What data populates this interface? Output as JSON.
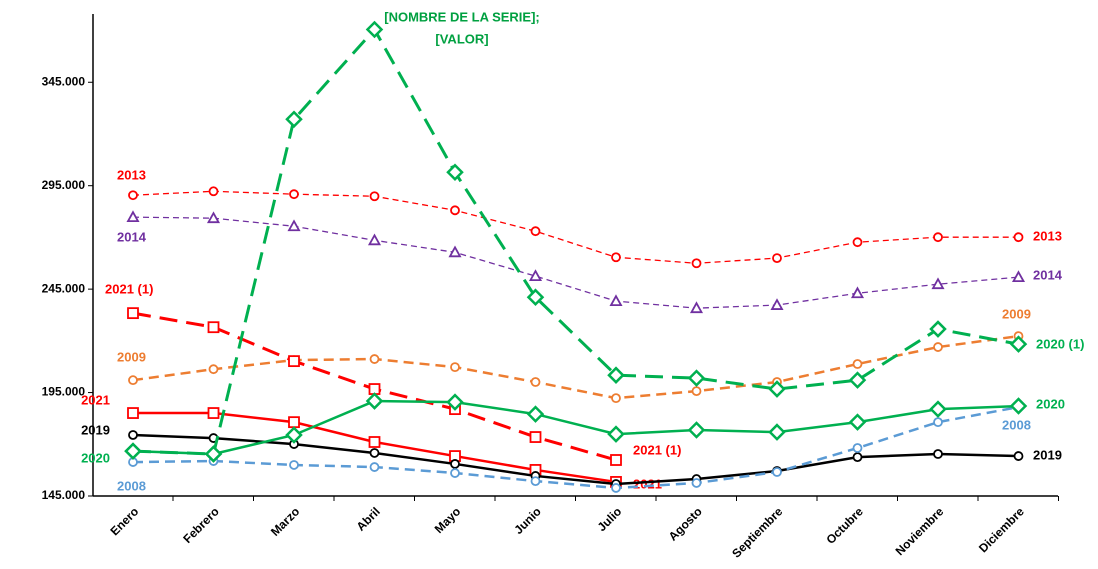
{
  "chart_data": {
    "type": "line",
    "annotation": [
      "[NOMBRE DE LA SERIE];",
      "[VALOR]"
    ],
    "annotation_color": "#00a040",
    "categories": [
      "Enero",
      "Febrero",
      "Marzo",
      "Abril",
      "Mayo",
      "Junio",
      "Julio",
      "Agosto",
      "Septiembre",
      "Octubre",
      "Noviembre",
      "Diciembre"
    ],
    "ylim": [
      145000,
      378000
    ],
    "yticks": [
      {
        "value": 145000,
        "label": "145.000"
      },
      {
        "value": 195000,
        "label": "195.000"
      },
      {
        "value": 245000,
        "label": "245.000"
      },
      {
        "value": 295000,
        "label": "295.000"
      },
      {
        "value": 345000,
        "label": "345.000"
      }
    ],
    "series": [
      {
        "name": "2013",
        "color": "#ff0000",
        "style": "dashed",
        "marker": "circle",
        "values": [
          290400,
          292300,
          290900,
          289900,
          283100,
          273000,
          260400,
          257500,
          260000,
          267700,
          270100,
          270100
        ]
      },
      {
        "name": "2014",
        "color": "#7030a0",
        "style": "dashed",
        "marker": "triangle",
        "values": [
          279800,
          279300,
          275400,
          268600,
          262800,
          251300,
          239200,
          235800,
          237300,
          243000,
          247400,
          250800
        ]
      },
      {
        "name": "2009",
        "color": "#ed7d31",
        "style": "mediumdash",
        "marker": "circle",
        "values": [
          201000,
          206300,
          210700,
          211200,
          207300,
          200100,
          192300,
          195700,
          200100,
          208800,
          217000,
          222300
        ]
      },
      {
        "name": "2021 (1)",
        "color": "#ff0000",
        "style": "longdash",
        "marker": "square",
        "values": [
          233400,
          226600,
          210200,
          196700,
          187000,
          173500,
          162400,
          null,
          null,
          null,
          null,
          null
        ]
      },
      {
        "name": "2021",
        "color": "#ff0000",
        "style": "solid",
        "marker": "square",
        "values": [
          185100,
          185100,
          180700,
          171100,
          164300,
          157600,
          151800,
          null,
          null,
          null,
          null,
          null
        ]
      },
      {
        "name": "2019",
        "color": "#000000",
        "style": "solid",
        "marker": "circle",
        "values": [
          174500,
          173000,
          170100,
          165800,
          160500,
          154700,
          150800,
          153200,
          157100,
          163800,
          165300,
          164300
        ]
      },
      {
        "name": "2008",
        "color": "#5b9bd5",
        "style": "mediumdash",
        "marker": "circle",
        "values": [
          161400,
          161900,
          160000,
          159000,
          156100,
          152200,
          148900,
          151300,
          156600,
          168200,
          180700,
          188000
        ]
      },
      {
        "name": "2020",
        "color": "#00b050",
        "style": "solid",
        "marker": "diamond",
        "values": [
          166700,
          165300,
          174500,
          190900,
          190400,
          184600,
          174900,
          176900,
          175900,
          180700,
          187000,
          188500
        ]
      },
      {
        "name": "2020 (1)",
        "color": "#00b050",
        "style": "longdash",
        "marker": "diamond",
        "values": [
          166700,
          165300,
          327100,
          370500,
          301500,
          241100,
          203400,
          202000,
          196700,
          201000,
          225700,
          218400
        ]
      }
    ]
  }
}
